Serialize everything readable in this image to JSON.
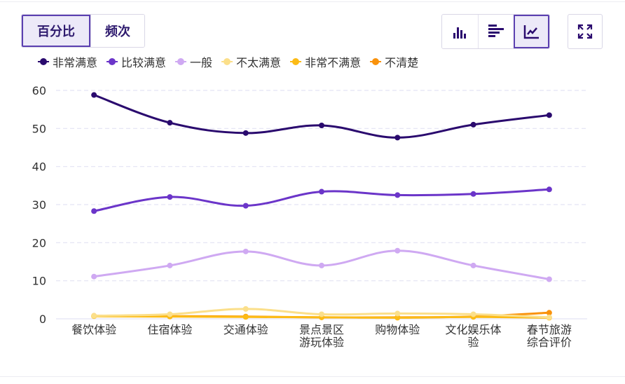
{
  "toolbar": {
    "modes": [
      "百分比",
      "频次"
    ],
    "active_mode": "百分比",
    "views": [
      {
        "icon": "bar-chart-icon"
      },
      {
        "icon": "horizontal-bar-chart-icon"
      },
      {
        "icon": "line-chart-icon",
        "active": true
      }
    ],
    "fullscreen_icon": "fullscreen-icon"
  },
  "chart_data": {
    "type": "line",
    "title": "",
    "xlabel": "",
    "ylabel": "",
    "ylim": [
      0,
      60
    ],
    "yticks": [
      0,
      10,
      20,
      30,
      40,
      50,
      60
    ],
    "grid": true,
    "legend_position": "top-left",
    "categories": [
      [
        "餐饮体验"
      ],
      [
        "住宿体验"
      ],
      [
        "交通体验"
      ],
      [
        "景点景区",
        "游玩体验"
      ],
      [
        "购物体验"
      ],
      [
        "文化娱乐体",
        "验"
      ],
      [
        "春节旅游",
        "综合评价"
      ]
    ],
    "series": [
      {
        "name": "非常满意",
        "color": "#2a0a6e",
        "values": [
          58.8,
          51.5,
          48.8,
          50.8,
          47.6,
          51.0,
          53.5
        ]
      },
      {
        "name": "比较满意",
        "color": "#6b35c9",
        "values": [
          28.3,
          32.0,
          29.7,
          33.4,
          32.5,
          32.8,
          34.0
        ]
      },
      {
        "name": "一般",
        "color": "#cfa9f2",
        "values": [
          11.1,
          14.0,
          17.7,
          14.0,
          17.9,
          14.0,
          10.4
        ]
      },
      {
        "name": "不太满意",
        "color": "#fbdf8a",
        "values": [
          0.8,
          1.2,
          2.6,
          1.2,
          1.4,
          1.2,
          0.4
        ]
      },
      {
        "name": "非常不满意",
        "color": "#fcbb16",
        "values": [
          0.7,
          0.6,
          0.5,
          0.4,
          0.3,
          0.5,
          0.3
        ]
      },
      {
        "name": "不清楚",
        "color": "#f9920c",
        "values": [
          0.8,
          0.7,
          0.6,
          0.4,
          0.4,
          0.6,
          1.6
        ]
      }
    ]
  }
}
